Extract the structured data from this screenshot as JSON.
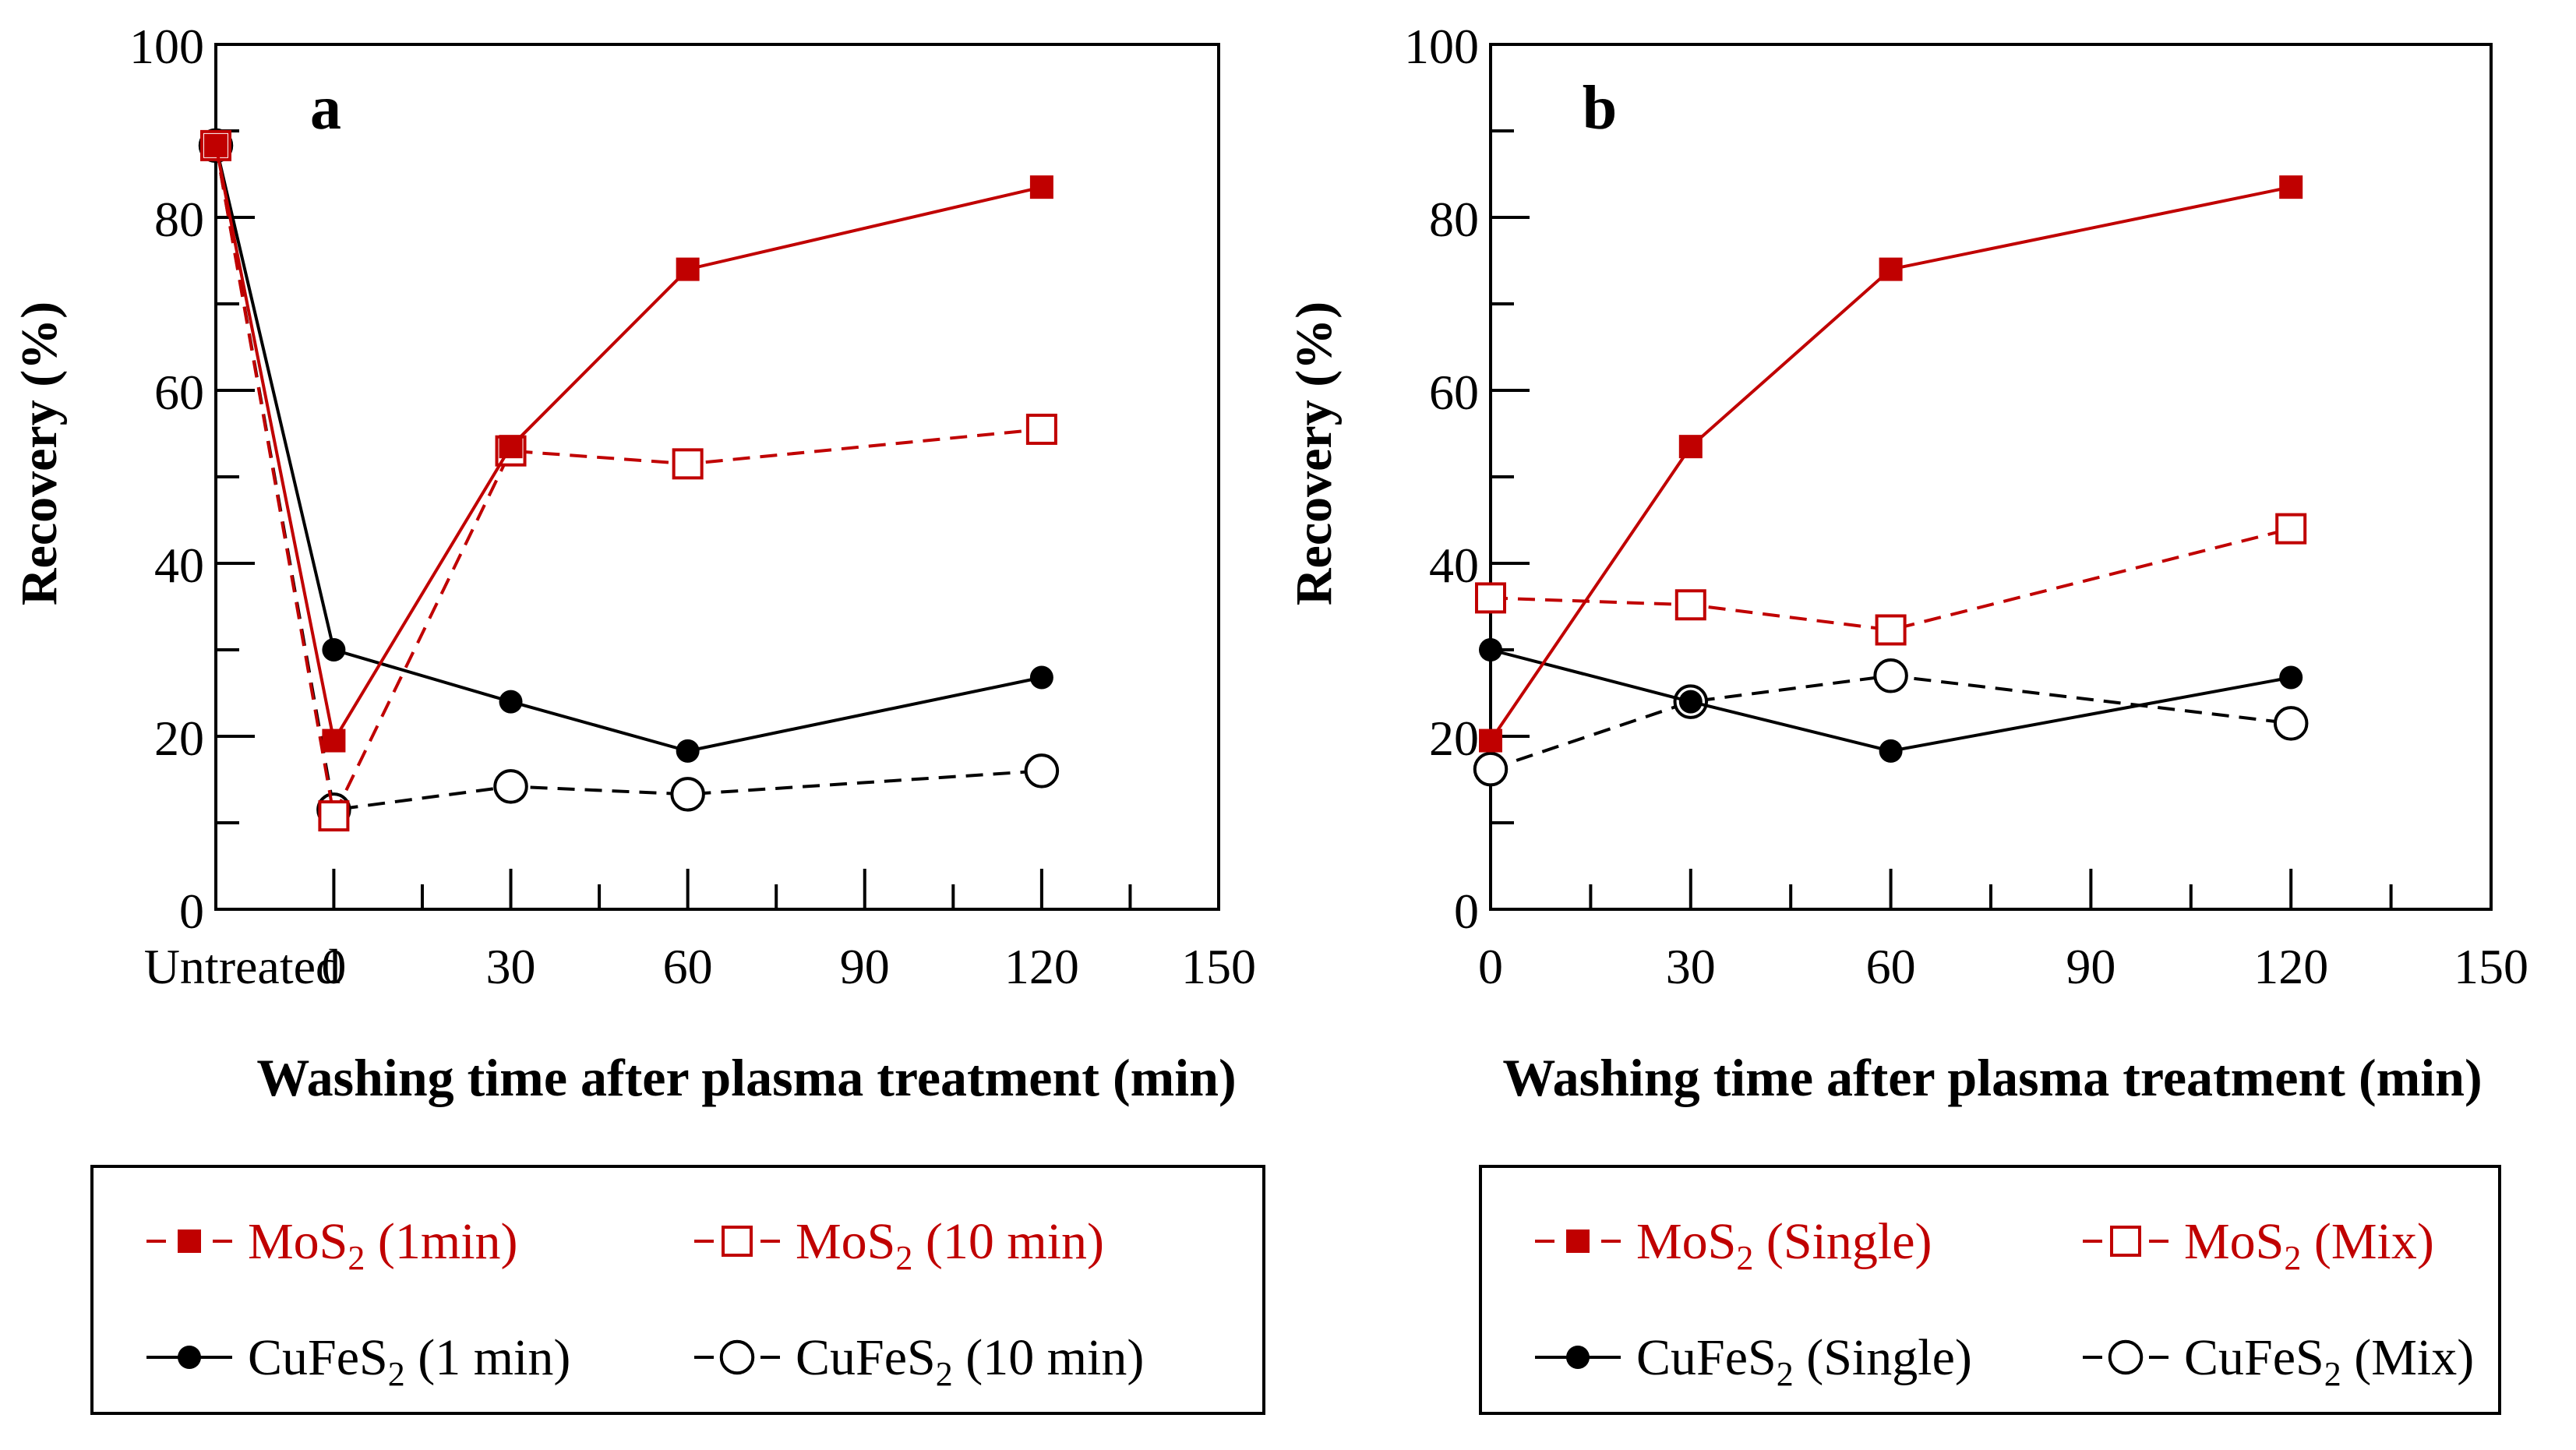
{
  "colors": {
    "mos2": "#c00000",
    "cufes2": "#000000"
  },
  "chart_data": [
    {
      "panel_label": "a",
      "type": "line",
      "xlabel": "Washing time after plasma treatment (min)",
      "ylabel": "Recovery (%)",
      "xlim": [
        -20,
        150
      ],
      "ylim": [
        0,
        100
      ],
      "xticks": [
        0,
        30,
        60,
        90,
        120,
        150
      ],
      "yticks": [
        0,
        20,
        40,
        60,
        80,
        100
      ],
      "extra_xtick": {
        "x": -20,
        "label": "Untreated"
      },
      "series": [
        {
          "name": "MoS2 (1min)",
          "formula": "MoS",
          "subscript": "2",
          "suffix": " (1min)",
          "color": "#c00000",
          "marker": "filled-square",
          "dash": "solid",
          "x": [
            -20,
            0,
            30,
            60,
            120
          ],
          "y": [
            88.3,
            19.5,
            53.5,
            74,
            83.5
          ]
        },
        {
          "name": "MoS2 (10 min)",
          "formula": "MoS",
          "subscript": "2",
          "suffix": " (10 min)",
          "color": "#c00000",
          "marker": "open-square",
          "dash": "dashed",
          "x": [
            -20,
            0,
            30,
            60,
            120
          ],
          "y": [
            88.3,
            10.8,
            53,
            51.5,
            55.5
          ]
        },
        {
          "name": "CuFeS2 (1 min)",
          "formula": "CuFeS",
          "subscript": "2",
          "suffix": " (1 min)",
          "color": "#000000",
          "marker": "filled-circle",
          "dash": "solid",
          "x": [
            -20,
            0,
            30,
            60,
            120
          ],
          "y": [
            88.3,
            30,
            24,
            18.3,
            26.8
          ]
        },
        {
          "name": "CuFeS2 (10 min)",
          "formula": "CuFeS",
          "subscript": "2",
          "suffix": " (10 min)",
          "color": "#000000",
          "marker": "open-circle",
          "dash": "dashed",
          "x": [
            -20,
            0,
            30,
            60,
            120
          ],
          "y": [
            88.3,
            11.5,
            14.2,
            13.3,
            16
          ]
        }
      ]
    },
    {
      "panel_label": "b",
      "type": "line",
      "xlabel": "Washing time after plasma treatment (min)",
      "ylabel": "Recovery (%)",
      "xlim": [
        0,
        150
      ],
      "ylim": [
        0,
        100
      ],
      "xticks": [
        0,
        30,
        60,
        90,
        120,
        150
      ],
      "yticks": [
        0,
        20,
        40,
        60,
        80,
        100
      ],
      "series": [
        {
          "name": "MoS2 (Single)",
          "formula": "MoS",
          "subscript": "2",
          "suffix": " (Single)",
          "color": "#c00000",
          "marker": "filled-square",
          "dash": "solid",
          "x": [
            0,
            30,
            60,
            120
          ],
          "y": [
            19.5,
            53.5,
            74,
            83.5
          ]
        },
        {
          "name": "MoS2 (Mix)",
          "formula": "MoS",
          "subscript": "2",
          "suffix": " (Mix)",
          "color": "#c00000",
          "marker": "open-square",
          "dash": "dashed",
          "x": [
            0,
            30,
            60,
            120
          ],
          "y": [
            36,
            35.2,
            32.3,
            44
          ]
        },
        {
          "name": "CuFeS2 (Single)",
          "formula": "CuFeS",
          "subscript": "2",
          "suffix": " (Single)",
          "color": "#000000",
          "marker": "filled-circle",
          "dash": "solid",
          "x": [
            0,
            30,
            60,
            120
          ],
          "y": [
            30,
            24,
            18.3,
            26.8
          ]
        },
        {
          "name": "CuFeS2 (Mix)",
          "formula": "CuFeS",
          "subscript": "2",
          "suffix": " (Mix)",
          "color": "#000000",
          "marker": "open-circle",
          "dash": "dashed",
          "x": [
            0,
            30,
            60,
            120
          ],
          "y": [
            16.2,
            24,
            27,
            21.5
          ]
        }
      ]
    }
  ]
}
